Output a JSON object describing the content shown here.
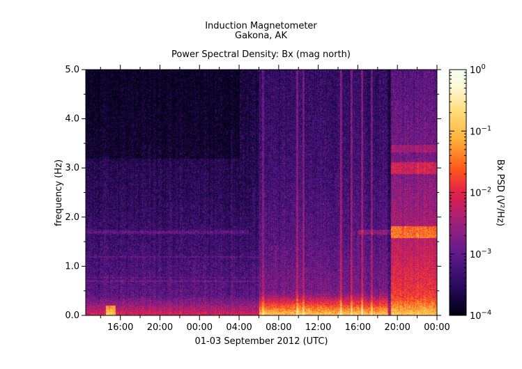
{
  "header": {
    "instrument": "Induction Magnetometer",
    "location": "Gakona, AK",
    "plot_title": "Power Spectral Density: Bx (mag north)"
  },
  "chart_data": {
    "type": "heatmap",
    "xlabel": "01-03 September 2012 (UTC)",
    "ylabel": "frequency (Hz)",
    "x_ticks": [
      "16:00",
      "20:00",
      "00:00",
      "04:00",
      "08:00",
      "12:00",
      "16:00",
      "20:00",
      "00:00"
    ],
    "x_range": [
      "2012-09-01 12:30",
      "2012-09-03 00:00"
    ],
    "y_ticks": [
      "0.0",
      "1.0",
      "2.0",
      "3.0",
      "4.0",
      "5.0"
    ],
    "ylim": [
      0,
      5
    ],
    "colorbar": {
      "label": "Bx PSD (V²/Hz)",
      "scale": "log",
      "range": [
        0.0001,
        1
      ],
      "ticks": [
        {
          "base": "10",
          "exp": "0",
          "value": 1
        },
        {
          "base": "10",
          "exp": "−1",
          "value": 0.1
        },
        {
          "base": "10",
          "exp": "−2",
          "value": 0.01
        },
        {
          "base": "10",
          "exp": "−3",
          "value": 0.001
        },
        {
          "base": "10",
          "exp": "−4",
          "value": 0.0001
        }
      ],
      "colors": [
        "#000010",
        "#2a0a5e",
        "#5e1a8c",
        "#a0207a",
        "#e3204a",
        "#ff5a1a",
        "#ffb43c",
        "#ffe080",
        "#fff8d8",
        "#f2fff4"
      ]
    }
  }
}
